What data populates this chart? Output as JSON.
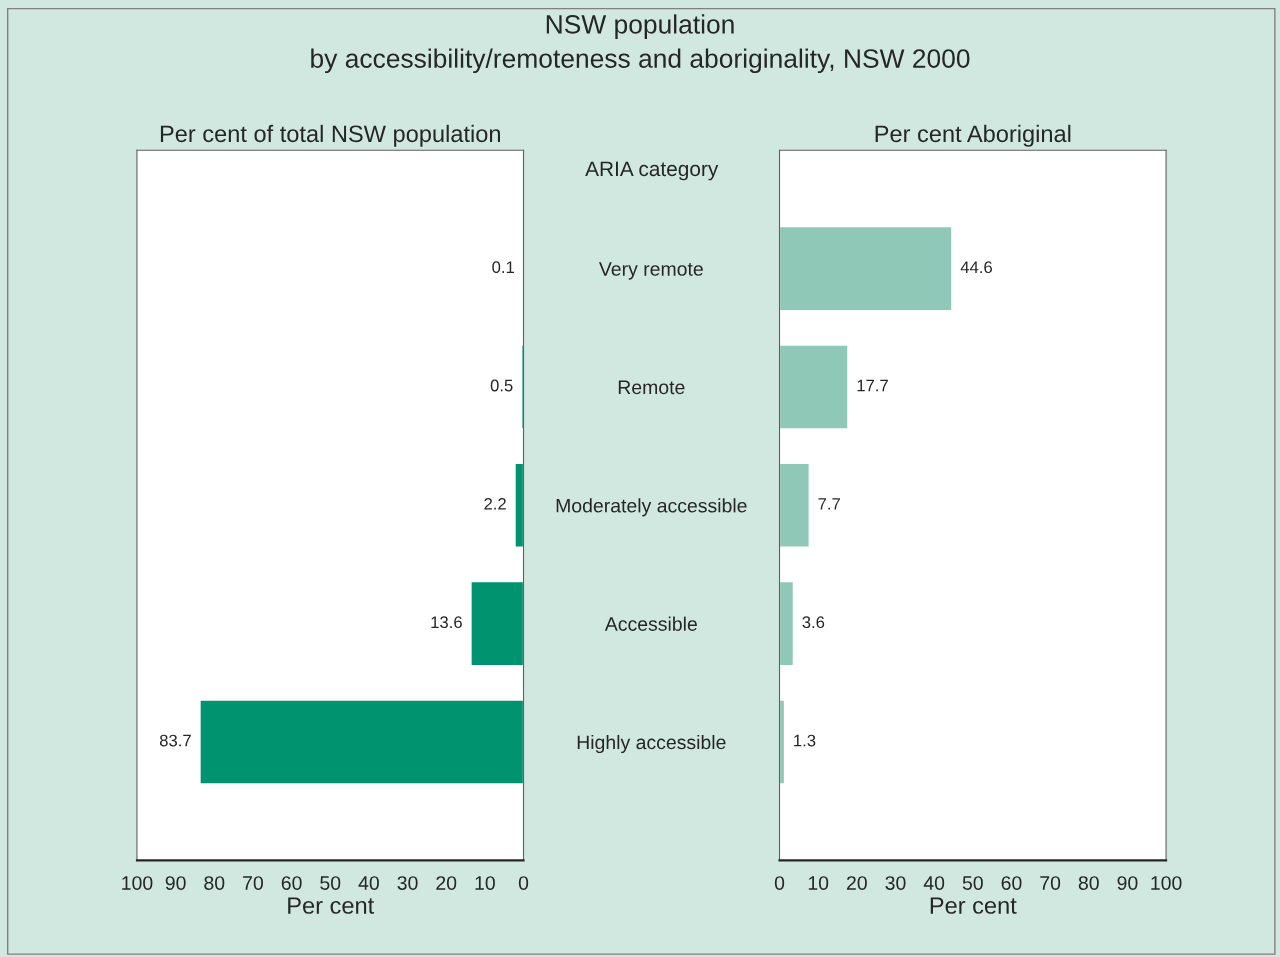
{
  "chart_data": [
    {
      "type": "bar",
      "orientation": "horizontal",
      "title": "NSW population\nby accessibility/remoteness and aboriginality, NSW 2000",
      "subtitle": "Per cent of total NSW population",
      "ylabel": "ARIA category",
      "xlabel": "Per cent",
      "categories": [
        "Very remote",
        "Remote",
        "Moderately accessible",
        "Accessible",
        "Highly accessible"
      ],
      "values": [
        0.1,
        0.5,
        2.2,
        13.6,
        83.7
      ],
      "color": "#009370",
      "xlim": [
        100,
        0
      ],
      "xticks": [
        100,
        90,
        80,
        70,
        60,
        50,
        40,
        30,
        20,
        10,
        0
      ],
      "grid": false,
      "data_labels": true
    },
    {
      "type": "bar",
      "orientation": "horizontal",
      "title": "Per cent Aboriginal",
      "xlabel": "Per cent",
      "categories": [
        null,
        null,
        null,
        null,
        null
      ],
      "values": [
        44.6,
        17.7,
        7.7,
        3.6,
        1.3
      ],
      "color": "#90c8b8",
      "xlim": [
        0,
        100
      ],
      "xticks": [
        0,
        10,
        20,
        30,
        40,
        50,
        60,
        70,
        80,
        90,
        100
      ],
      "grid": false,
      "data_labels": true
    }
  ]
}
